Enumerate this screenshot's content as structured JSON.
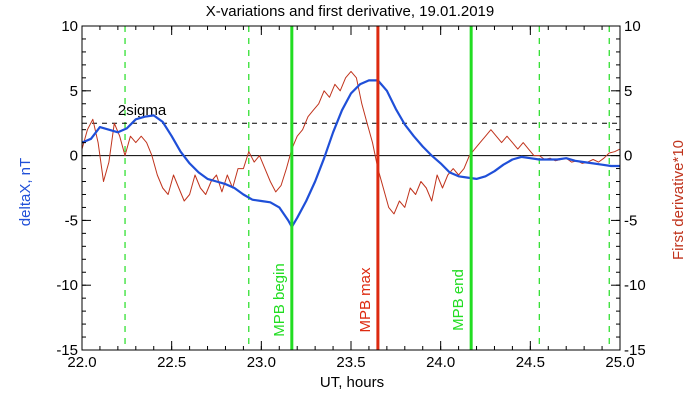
{
  "chart_data": {
    "type": "line",
    "title": "X-variations and first derivative, 19.01.2019",
    "xlabel": "UT, hours",
    "ylabel_left": "deltaX, nT",
    "ylabel_right": "First derivative*10",
    "xlim": [
      22.0,
      25.0
    ],
    "ylim": [
      -15,
      10
    ],
    "xticks": [
      22.0,
      22.5,
      23.0,
      23.5,
      24.0,
      24.5,
      25.0
    ],
    "xtick_labels": [
      "22.0",
      "22.5",
      "23.0",
      "23.5",
      "24.0",
      "24.5",
      "25.0"
    ],
    "yticks": [
      -15,
      -10,
      -5,
      0,
      5,
      10
    ],
    "ytick_labels": [
      "-15",
      "-10",
      "-5",
      "0",
      "5",
      "10"
    ],
    "sigma_label": "2sigma",
    "sigma_level": 2.5,
    "colors": {
      "deltaX": "#1f4fd8",
      "derivative": "#c0341d",
      "mpb_boundary": "#22dd22",
      "mpb_max": "#dd2a10",
      "frame": "#000000"
    },
    "dashed_green_lines": [
      22.24,
      22.93,
      24.55,
      24.94
    ],
    "markers": [
      {
        "label": "MPB begin",
        "x": 23.17,
        "kind": "boundary"
      },
      {
        "label": "MPB max",
        "x": 23.65,
        "kind": "max"
      },
      {
        "label": "MPB end",
        "x": 24.17,
        "kind": "boundary"
      }
    ],
    "series": [
      {
        "name": "deltaX, nT",
        "x": [
          22.0,
          22.05,
          22.1,
          22.15,
          22.2,
          22.25,
          22.3,
          22.35,
          22.4,
          22.45,
          22.5,
          22.55,
          22.6,
          22.65,
          22.7,
          22.75,
          22.8,
          22.85,
          22.9,
          22.95,
          23.0,
          23.05,
          23.1,
          23.15,
          23.17,
          23.2,
          23.25,
          23.3,
          23.35,
          23.4,
          23.45,
          23.5,
          23.55,
          23.6,
          23.65,
          23.7,
          23.75,
          23.8,
          23.85,
          23.9,
          23.95,
          24.0,
          24.05,
          24.1,
          24.15,
          24.2,
          24.25,
          24.3,
          24.35,
          24.4,
          24.45,
          24.5,
          24.55,
          24.6,
          24.65,
          24.7,
          24.75,
          24.8,
          24.85,
          24.9,
          24.95,
          25.0
        ],
        "y": [
          1.0,
          1.3,
          2.2,
          2.0,
          1.8,
          2.1,
          2.8,
          3.0,
          3.1,
          2.6,
          1.5,
          0.3,
          -0.6,
          -1.3,
          -1.8,
          -2.0,
          -2.2,
          -2.5,
          -3.0,
          -3.4,
          -3.5,
          -3.6,
          -4.0,
          -5.0,
          -5.5,
          -4.8,
          -3.5,
          -2.0,
          -0.2,
          1.8,
          3.5,
          4.8,
          5.5,
          5.8,
          5.8,
          5.0,
          3.6,
          2.4,
          1.5,
          0.7,
          0.0,
          -0.6,
          -1.3,
          -1.6,
          -1.7,
          -1.8,
          -1.6,
          -1.2,
          -0.7,
          -0.3,
          -0.1,
          -0.2,
          -0.3,
          -0.3,
          -0.3,
          -0.2,
          -0.4,
          -0.5,
          -0.6,
          -0.7,
          -0.8,
          -0.8
        ]
      },
      {
        "name": "First derivative*10",
        "x": [
          22.0,
          22.03,
          22.06,
          22.09,
          22.12,
          22.15,
          22.18,
          22.21,
          22.24,
          22.27,
          22.3,
          22.33,
          22.36,
          22.39,
          22.42,
          22.45,
          22.48,
          22.51,
          22.54,
          22.57,
          22.6,
          22.63,
          22.66,
          22.69,
          22.72,
          22.75,
          22.78,
          22.81,
          22.84,
          22.87,
          22.9,
          22.93,
          22.96,
          22.99,
          23.02,
          23.05,
          23.08,
          23.11,
          23.14,
          23.17,
          23.2,
          23.23,
          23.26,
          23.29,
          23.32,
          23.35,
          23.38,
          23.41,
          23.44,
          23.47,
          23.5,
          23.53,
          23.56,
          23.59,
          23.62,
          23.65,
          23.68,
          23.71,
          23.74,
          23.77,
          23.8,
          23.83,
          23.86,
          23.89,
          23.92,
          23.95,
          23.98,
          24.01,
          24.04,
          24.07,
          24.1,
          24.13,
          24.16,
          24.19,
          24.22,
          24.25,
          24.28,
          24.31,
          24.34,
          24.37,
          24.4,
          24.43,
          24.46,
          24.49,
          24.52,
          24.55,
          24.58,
          24.61,
          24.64,
          24.67,
          24.7,
          24.73,
          24.76,
          24.79,
          24.82,
          24.85,
          24.88,
          24.91,
          24.94,
          24.97,
          25.0
        ],
        "y": [
          0.5,
          2.0,
          2.8,
          1.0,
          -2.0,
          -0.5,
          2.5,
          1.5,
          0.0,
          1.5,
          1.0,
          1.5,
          1.0,
          0.0,
          -1.5,
          -2.5,
          -3.0,
          -1.5,
          -2.5,
          -3.5,
          -3.0,
          -1.5,
          -2.5,
          -3.0,
          -2.0,
          -1.5,
          -2.8,
          -1.5,
          -2.5,
          -1.0,
          -1.0,
          0.3,
          -0.5,
          0.0,
          -1.0,
          -2.0,
          -2.8,
          -2.3,
          -1.0,
          0.5,
          1.5,
          2.0,
          3.0,
          3.5,
          4.0,
          5.0,
          4.5,
          5.5,
          5.0,
          6.0,
          6.5,
          6.0,
          4.0,
          2.5,
          1.0,
          -1.0,
          -2.5,
          -4.0,
          -4.5,
          -3.5,
          -4.0,
          -2.5,
          -3.0,
          -2.0,
          -2.5,
          -3.5,
          -1.5,
          -2.5,
          -1.5,
          -1.0,
          -1.5,
          -1.0,
          0.0,
          0.5,
          1.0,
          1.5,
          2.0,
          1.5,
          1.0,
          1.5,
          1.0,
          0.5,
          1.0,
          0.5,
          0.0,
          0.0,
          -0.3,
          -0.2,
          -0.4,
          -0.3,
          -0.2,
          -0.5,
          -0.4,
          -0.6,
          -0.5,
          -0.3,
          -0.5,
          -0.2,
          0.2,
          0.3,
          0.5
        ]
      }
    ]
  }
}
